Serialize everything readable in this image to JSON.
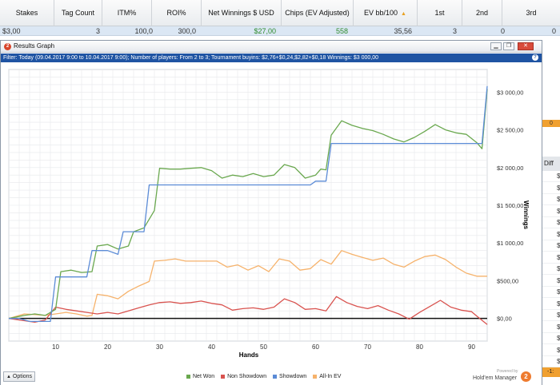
{
  "table": {
    "headers": [
      "Stakes",
      "Tag Count",
      "ITM%",
      "ROI%",
      "Net Winnings $ USD",
      "Chips (EV Adjusted)",
      "EV bb/100",
      "1st",
      "2nd",
      "3rd"
    ],
    "sort_arrow": "▲",
    "row": [
      "$3,00",
      "3",
      "100,0",
      "300,0",
      "$27,00",
      "558",
      "35,56",
      "3",
      "0",
      "0"
    ]
  },
  "side_panel": {
    "badge": "0",
    "header": "Diff",
    "cells": [
      "$",
      "$",
      "$",
      "$",
      "$",
      "$",
      "$",
      "$",
      "$",
      "$",
      "$",
      "$",
      "$",
      "$",
      "$",
      "$",
      "$"
    ],
    "bottom": "-1:"
  },
  "window": {
    "title": "Results Graph",
    "icon_letter": "2",
    "buttons": {
      "minimize": "▁",
      "restore": "❐",
      "close": "✕"
    },
    "filter": "Filter: Today (09.04.2017 9:00 to 10.04.2017 9:00); Number of players: From 2 to 3; Tournament buyins: $2,76+$0,24,$2,82+$0,18  Winnings: $3 000,00",
    "help": "?"
  },
  "footer": {
    "options_label": "Options",
    "options_arrow": "▲",
    "powered_by": "Powered by",
    "brand_name": "Hold'em Manager",
    "brand_logo": "2"
  },
  "chart_data": {
    "type": "line",
    "xlabel": "Hands",
    "ylabel": "Winnings",
    "xlim": [
      1,
      93
    ],
    "ylim": [
      -300,
      3300
    ],
    "x_ticks": [
      10,
      20,
      30,
      40,
      50,
      60,
      70,
      80,
      90
    ],
    "y_ticks": [
      0,
      500,
      1000,
      1500,
      2000,
      2500,
      3000
    ],
    "y_tick_labels": [
      "$0,00",
      "$500,00",
      "$1 000,00",
      "$1 500,00",
      "$2 000,00",
      "$2 500,00",
      "$3 000,00"
    ],
    "grid": true,
    "legend_position": "bottom",
    "series": [
      {
        "name": "Net Won",
        "color": "#6aa84f",
        "points": [
          [
            1,
            0
          ],
          [
            4,
            40
          ],
          [
            6,
            60
          ],
          [
            8,
            40
          ],
          [
            10,
            120
          ],
          [
            11,
            620
          ],
          [
            13,
            640
          ],
          [
            15,
            610
          ],
          [
            17,
            620
          ],
          [
            18,
            960
          ],
          [
            20,
            980
          ],
          [
            22,
            920
          ],
          [
            24,
            960
          ],
          [
            25,
            1150
          ],
          [
            27,
            1200
          ],
          [
            29,
            1430
          ],
          [
            30,
            1990
          ],
          [
            32,
            1980
          ],
          [
            34,
            1980
          ],
          [
            36,
            1990
          ],
          [
            38,
            2000
          ],
          [
            40,
            1960
          ],
          [
            42,
            1860
          ],
          [
            44,
            1900
          ],
          [
            46,
            1880
          ],
          [
            48,
            1920
          ],
          [
            50,
            1880
          ],
          [
            52,
            1900
          ],
          [
            54,
            2040
          ],
          [
            56,
            2000
          ],
          [
            58,
            1860
          ],
          [
            60,
            1900
          ],
          [
            61,
            1980
          ],
          [
            62,
            1970
          ],
          [
            63,
            2430
          ],
          [
            65,
            2620
          ],
          [
            67,
            2560
          ],
          [
            69,
            2520
          ],
          [
            71,
            2490
          ],
          [
            73,
            2440
          ],
          [
            75,
            2380
          ],
          [
            77,
            2340
          ],
          [
            79,
            2400
          ],
          [
            81,
            2480
          ],
          [
            83,
            2570
          ],
          [
            85,
            2500
          ],
          [
            87,
            2460
          ],
          [
            89,
            2440
          ],
          [
            91,
            2330
          ],
          [
            92,
            2250
          ],
          [
            93,
            3040
          ]
        ]
      },
      {
        "name": "Non Showdown",
        "color": "#d9534f",
        "points": [
          [
            1,
            0
          ],
          [
            4,
            -30
          ],
          [
            6,
            -50
          ],
          [
            8,
            -20
          ],
          [
            10,
            150
          ],
          [
            12,
            120
          ],
          [
            14,
            100
          ],
          [
            16,
            80
          ],
          [
            18,
            60
          ],
          [
            20,
            80
          ],
          [
            22,
            60
          ],
          [
            24,
            100
          ],
          [
            26,
            140
          ],
          [
            28,
            180
          ],
          [
            30,
            210
          ],
          [
            32,
            220
          ],
          [
            34,
            200
          ],
          [
            36,
            210
          ],
          [
            38,
            230
          ],
          [
            40,
            200
          ],
          [
            42,
            180
          ],
          [
            44,
            110
          ],
          [
            46,
            130
          ],
          [
            48,
            140
          ],
          [
            50,
            120
          ],
          [
            52,
            150
          ],
          [
            54,
            260
          ],
          [
            56,
            210
          ],
          [
            58,
            120
          ],
          [
            60,
            130
          ],
          [
            62,
            100
          ],
          [
            64,
            290
          ],
          [
            66,
            210
          ],
          [
            68,
            160
          ],
          [
            70,
            130
          ],
          [
            72,
            170
          ],
          [
            74,
            110
          ],
          [
            76,
            60
          ],
          [
            78,
            -10
          ],
          [
            80,
            80
          ],
          [
            82,
            160
          ],
          [
            84,
            240
          ],
          [
            86,
            150
          ],
          [
            88,
            110
          ],
          [
            90,
            90
          ],
          [
            91,
            30
          ],
          [
            93,
            -80
          ]
        ]
      },
      {
        "name": "Showdown",
        "color": "#5b8bd6",
        "points": [
          [
            1,
            0
          ],
          [
            3,
            0
          ],
          [
            5,
            -40
          ],
          [
            7,
            -40
          ],
          [
            9,
            -40
          ],
          [
            10,
            550
          ],
          [
            12,
            550
          ],
          [
            14,
            550
          ],
          [
            16,
            550
          ],
          [
            17,
            900
          ],
          [
            20,
            900
          ],
          [
            22,
            850
          ],
          [
            23,
            1150
          ],
          [
            26,
            1150
          ],
          [
            27,
            1150
          ],
          [
            28,
            1770
          ],
          [
            35,
            1770
          ],
          [
            45,
            1770
          ],
          [
            55,
            1770
          ],
          [
            59,
            1770
          ],
          [
            60,
            1820
          ],
          [
            62,
            1820
          ],
          [
            63,
            2320
          ],
          [
            70,
            2320
          ],
          [
            80,
            2320
          ],
          [
            90,
            2320
          ],
          [
            92,
            2320
          ],
          [
            93,
            3080
          ]
        ]
      },
      {
        "name": "All-In EV",
        "color": "#f6b26b",
        "points": [
          [
            1,
            0
          ],
          [
            4,
            60
          ],
          [
            6,
            50
          ],
          [
            8,
            40
          ],
          [
            10,
            60
          ],
          [
            12,
            80
          ],
          [
            14,
            60
          ],
          [
            16,
            30
          ],
          [
            17,
            40
          ],
          [
            18,
            320
          ],
          [
            20,
            300
          ],
          [
            22,
            260
          ],
          [
            24,
            360
          ],
          [
            26,
            430
          ],
          [
            28,
            490
          ],
          [
            29,
            760
          ],
          [
            31,
            770
          ],
          [
            33,
            790
          ],
          [
            35,
            760
          ],
          [
            37,
            760
          ],
          [
            39,
            760
          ],
          [
            41,
            760
          ],
          [
            43,
            680
          ],
          [
            45,
            710
          ],
          [
            47,
            640
          ],
          [
            49,
            700
          ],
          [
            51,
            620
          ],
          [
            53,
            790
          ],
          [
            55,
            760
          ],
          [
            57,
            640
          ],
          [
            59,
            660
          ],
          [
            61,
            780
          ],
          [
            63,
            720
          ],
          [
            65,
            900
          ],
          [
            67,
            850
          ],
          [
            69,
            810
          ],
          [
            71,
            770
          ],
          [
            73,
            800
          ],
          [
            75,
            720
          ],
          [
            77,
            680
          ],
          [
            79,
            760
          ],
          [
            81,
            820
          ],
          [
            83,
            840
          ],
          [
            85,
            780
          ],
          [
            87,
            680
          ],
          [
            89,
            600
          ],
          [
            91,
            560
          ],
          [
            93,
            560
          ]
        ]
      }
    ]
  }
}
